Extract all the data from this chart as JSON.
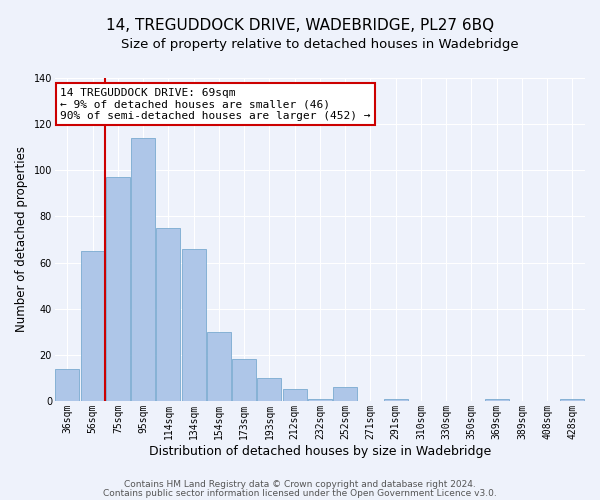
{
  "title": "14, TREGUDDOCK DRIVE, WADEBRIDGE, PL27 6BQ",
  "subtitle": "Size of property relative to detached houses in Wadebridge",
  "xlabel": "Distribution of detached houses by size in Wadebridge",
  "ylabel": "Number of detached properties",
  "categories": [
    "36sqm",
    "56sqm",
    "75sqm",
    "95sqm",
    "114sqm",
    "134sqm",
    "154sqm",
    "173sqm",
    "193sqm",
    "212sqm",
    "232sqm",
    "252sqm",
    "271sqm",
    "291sqm",
    "310sqm",
    "330sqm",
    "350sqm",
    "369sqm",
    "389sqm",
    "408sqm",
    "428sqm"
  ],
  "values": [
    14,
    65,
    97,
    114,
    75,
    66,
    30,
    18,
    10,
    5,
    1,
    6,
    0,
    1,
    0,
    0,
    0,
    1,
    0,
    0,
    1
  ],
  "bar_color": "#aec6e8",
  "bar_edge_color": "#7aaad0",
  "vline_color": "#cc0000",
  "vline_x": 1.5,
  "ylim": [
    0,
    140
  ],
  "yticks": [
    0,
    20,
    40,
    60,
    80,
    100,
    120,
    140
  ],
  "annotation_title": "14 TREGUDDOCK DRIVE: 69sqm",
  "annotation_line1": "← 9% of detached houses are smaller (46)",
  "annotation_line2": "90% of semi-detached houses are larger (452) →",
  "annotation_box_color": "#ffffff",
  "annotation_box_edge": "#cc0000",
  "footnote1": "Contains HM Land Registry data © Crown copyright and database right 2024.",
  "footnote2": "Contains public sector information licensed under the Open Government Licence v3.0.",
  "background_color": "#eef2fb",
  "grid_color": "#ffffff",
  "title_fontsize": 11,
  "subtitle_fontsize": 9.5,
  "axis_label_fontsize": 9,
  "ylabel_fontsize": 8.5,
  "tick_fontsize": 7,
  "annotation_fontsize": 8,
  "footnote_fontsize": 6.5
}
